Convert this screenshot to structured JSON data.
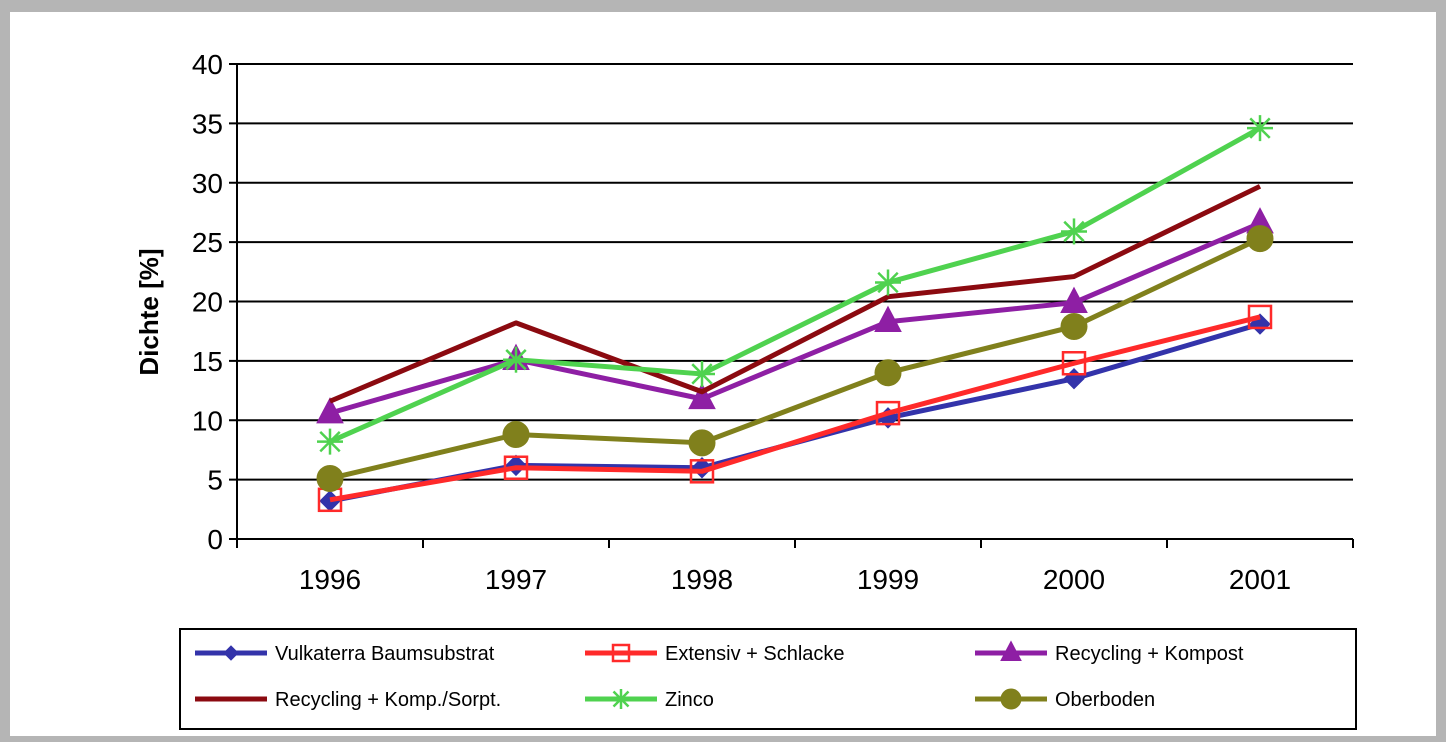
{
  "chart_data": {
    "type": "line",
    "title": "",
    "xlabel": "",
    "ylabel": "Dichte [%]",
    "ylim": [
      0,
      40
    ],
    "yticks": [
      0,
      5,
      10,
      15,
      20,
      25,
      30,
      35,
      40
    ],
    "grid": true,
    "legend_position": "bottom",
    "categories": [
      "1996",
      "1997",
      "1998",
      "1999",
      "2000",
      "2001"
    ],
    "series": [
      {
        "name": "Vulkaterra Baumsubstrat",
        "color": "#3333aa",
        "marker": "diamond",
        "values": [
          3.2,
          6.2,
          6.0,
          10.2,
          13.5,
          18.1
        ]
      },
      {
        "name": "Extensiv + Schlacke",
        "color": "#ff2a2a",
        "marker": "open-square",
        "values": [
          3.3,
          6.0,
          5.7,
          10.6,
          14.8,
          18.7
        ]
      },
      {
        "name": "Recycling + Kompost",
        "color": "#8e1fa4",
        "marker": "triangle",
        "values": [
          10.6,
          15.1,
          11.8,
          18.3,
          19.9,
          26.6
        ]
      },
      {
        "name": "Recycling + Komp./Sorpt.",
        "color": "#8b0a10",
        "marker": "none",
        "values": [
          11.6,
          18.2,
          12.4,
          20.4,
          22.1,
          29.7
        ]
      },
      {
        "name": "Zinco",
        "color": "#4fd24f",
        "marker": "star",
        "values": [
          8.2,
          15.1,
          13.9,
          21.6,
          25.9,
          34.6
        ]
      },
      {
        "name": "Oberboden",
        "color": "#80801c",
        "marker": "circle",
        "values": [
          5.1,
          8.8,
          8.1,
          14.0,
          17.9,
          25.3
        ]
      }
    ]
  }
}
